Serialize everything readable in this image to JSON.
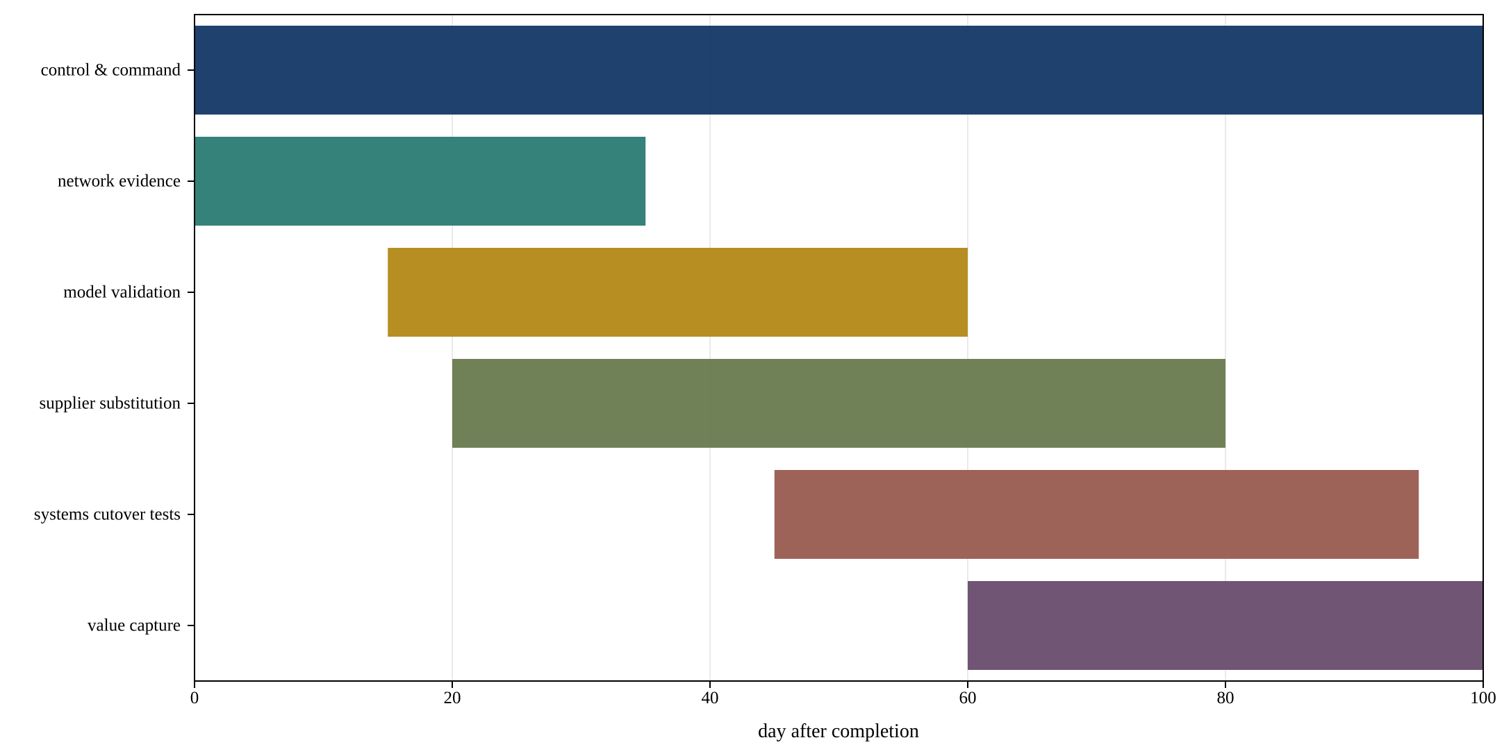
{
  "chart_data": {
    "type": "bar",
    "orientation": "horizontal",
    "subtype": "gantt",
    "title": "",
    "xlabel": "day after completion",
    "ylabel": "",
    "xlim": [
      0,
      100
    ],
    "xticks": [
      0,
      20,
      40,
      60,
      80,
      100
    ],
    "grid": "vertical",
    "legend": "none",
    "categories": [
      "control & command",
      "network evidence",
      "model validation",
      "supplier substitution",
      "systems cutover tests",
      "value capture"
    ],
    "tasks": [
      {
        "label": "control & command",
        "start": 0,
        "end": 100,
        "color": "#183b68"
      },
      {
        "label": "network evidence",
        "start": 0,
        "end": 35,
        "color": "#2e7e76"
      },
      {
        "label": "model validation",
        "start": 15,
        "end": 60,
        "color": "#b48a1b"
      },
      {
        "label": "supplier substitution",
        "start": 20,
        "end": 80,
        "color": "#6b7d52"
      },
      {
        "label": "systems cutover tests",
        "start": 45,
        "end": 95,
        "color": "#9a5e53"
      },
      {
        "label": "value capture",
        "start": 60,
        "end": 100,
        "color": "#6b4f71"
      }
    ]
  }
}
